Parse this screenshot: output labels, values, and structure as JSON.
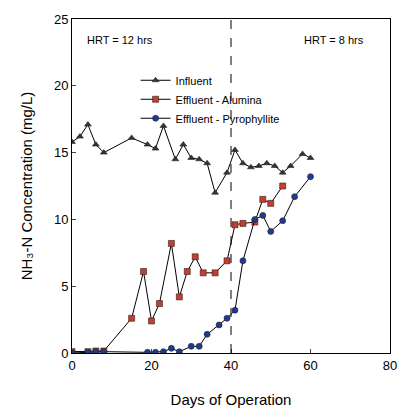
{
  "chart_data": {
    "type": "line",
    "x_label": "Days of Operation",
    "y_label": "NH₃-N Concentration (mg/L)",
    "xlim": [
      0,
      80
    ],
    "xticks": [
      0,
      20,
      40,
      60,
      80
    ],
    "ylim": [
      0,
      25
    ],
    "yticks": [
      0,
      5,
      10,
      15,
      20,
      25
    ],
    "grid": false,
    "legend": "top",
    "vline": 40,
    "annotations": [
      {
        "text": "HRT = 12 hrs",
        "x": 12,
        "y": 23.4
      },
      {
        "text": "HRT = 8 hrs",
        "x": 66,
        "y": 23.4
      }
    ],
    "series": [
      {
        "name": "Influent",
        "color": "#333333",
        "marker": "triangle",
        "x": [
          0,
          2,
          4,
          6,
          8,
          15,
          19,
          21,
          23,
          26,
          28,
          30,
          32,
          34,
          36,
          39,
          41,
          43,
          45,
          47,
          49,
          51,
          53,
          55,
          58,
          60
        ],
        "values": [
          15.8,
          16.2,
          17.1,
          15.6,
          15.0,
          16.1,
          15.6,
          15.3,
          17.0,
          14.5,
          15.6,
          14.6,
          14.5,
          14.2,
          12.0,
          13.5,
          15.2,
          14.2,
          13.9,
          14.0,
          14.2,
          14.0,
          13.5,
          14.0,
          14.9,
          14.6
        ]
      },
      {
        "name": "Effluent - Alumina",
        "color": "#d03a2c",
        "marker": "square",
        "x": [
          0,
          4,
          6,
          8,
          15,
          18,
          20,
          22,
          25,
          27,
          29,
          31,
          33,
          36,
          39,
          41,
          43,
          46,
          48,
          50,
          53
        ],
        "values": [
          0.1,
          0.1,
          0.15,
          0.15,
          2.6,
          6.1,
          2.4,
          3.7,
          8.2,
          4.2,
          6.1,
          7.2,
          6.0,
          6.0,
          6.9,
          9.6,
          9.7,
          9.8,
          11.5,
          11.2,
          12.5
        ]
      },
      {
        "name": "Effluent - Pyrophyllite",
        "color": "#1f3a93",
        "marker": "circle",
        "x": [
          0,
          4,
          6,
          8,
          19,
          21,
          23,
          25,
          27,
          30,
          32,
          34,
          37,
          39,
          41,
          43,
          46,
          48,
          50,
          53,
          56,
          60
        ],
        "values": [
          0.0,
          0.05,
          0.1,
          0.1,
          0.05,
          0.05,
          0.1,
          0.35,
          0.1,
          0.5,
          0.5,
          1.4,
          2.1,
          2.6,
          3.2,
          6.9,
          10.0,
          10.3,
          9.1,
          9.9,
          11.7,
          13.2
        ]
      }
    ]
  }
}
